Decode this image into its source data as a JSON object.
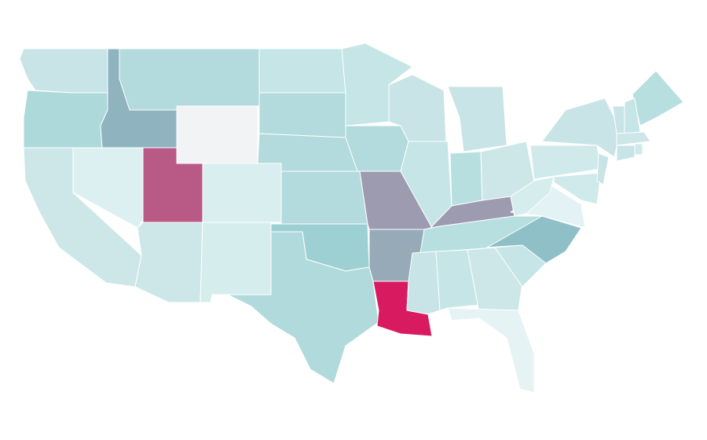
{
  "map": {
    "regions": [
      {
        "color": "#c8e4e6"
      },
      {
        "color": "#aed9da"
      },
      {
        "color": "#8fb4c0"
      },
      {
        "color": "#b3dadc"
      },
      {
        "color": "#f1f3f5"
      },
      {
        "color": "#cde7e9"
      },
      {
        "color": "#dcf0f2"
      },
      {
        "color": "#b85a85"
      },
      {
        "color": "#d8eeef"
      },
      {
        "color": "#cde7e9"
      },
      {
        "color": "#d6eded"
      },
      {
        "color": "#c5e5e7"
      },
      {
        "color": "#b3dadc"
      },
      {
        "color": "#b3dadc"
      },
      {
        "color": "#b3dadc"
      },
      {
        "color": "#9dd0d3"
      },
      {
        "color": "#b0dadb"
      },
      {
        "color": "#c5e5e7"
      },
      {
        "color": "#b3dadc"
      },
      {
        "color": "#9d9bb0"
      },
      {
        "color": "#96aab8"
      },
      {
        "color": "#d81b60"
      },
      {
        "color": "#c8e4e6"
      },
      {
        "color": "#c5e5e7"
      },
      {
        "color": "#c8e4e6"
      },
      {
        "color": "#b8dfe0"
      },
      {
        "color": "#cde7e9"
      },
      {
        "color": "#9d9bb0"
      },
      {
        "color": "#b8dfe0"
      },
      {
        "color": "#c8e4e6"
      },
      {
        "color": "#c5e5e7"
      },
      {
        "color": "#cde7e9"
      },
      {
        "color": "#e6f3f5"
      },
      {
        "color": "#c5e5e7"
      },
      {
        "color": "#8fbfc7"
      },
      {
        "color": "#e3f2f4"
      },
      {
        "color": "#d6eded"
      },
      {
        "color": "#d0e9eb"
      },
      {
        "color": "#c8e4e6"
      },
      {
        "color": "#d0e9eb"
      },
      {
        "color": "#c8e4e6"
      },
      {
        "color": "#b8dfe0"
      },
      {
        "color": "#c8e4e6"
      },
      {
        "color": "#c5e5e7"
      },
      {
        "color": "#cde7e9"
      },
      {
        "color": "#c8e4e6"
      },
      {
        "color": "#d0e9eb"
      }
    ]
  }
}
